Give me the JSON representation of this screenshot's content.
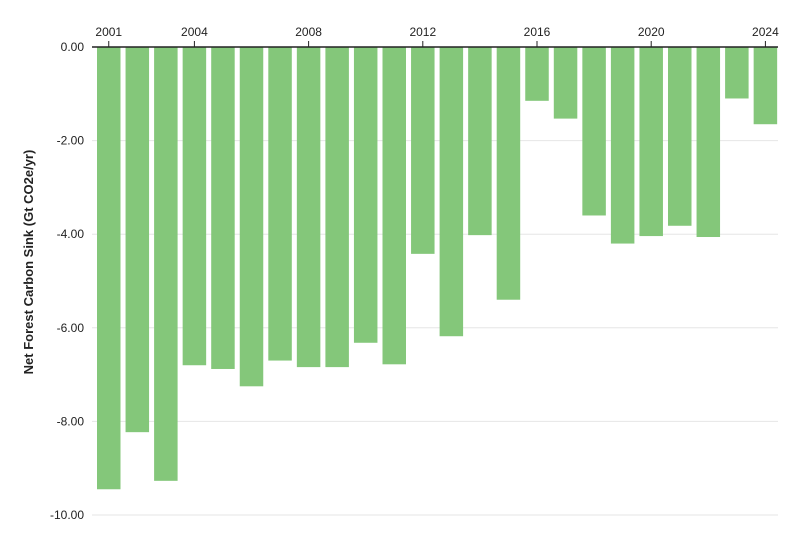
{
  "chart_data": {
    "type": "bar",
    "title": "",
    "xlabel": "",
    "ylabel": "Net Forest Carbon Sink (Gt CO2e/yr)",
    "categories": [
      "2001",
      "2002",
      "2003",
      "2004",
      "2005",
      "2006",
      "2007",
      "2008",
      "2009",
      "2010",
      "2011",
      "2012",
      "2013",
      "2014",
      "2015",
      "2016",
      "2017",
      "2018",
      "2019",
      "2020",
      "2021",
      "2022",
      "2023",
      "2024"
    ],
    "values": [
      -9.45,
      -8.23,
      -9.27,
      -6.8,
      -6.88,
      -7.25,
      -6.7,
      -6.84,
      -6.84,
      -6.32,
      -6.78,
      -4.42,
      -6.18,
      -4.02,
      -5.4,
      -1.15,
      -1.53,
      -3.6,
      -4.2,
      -4.04,
      -3.82,
      -4.06,
      -1.1,
      -1.65
    ],
    "ylim": [
      -10,
      0
    ],
    "y_ticks": [
      0,
      -2,
      -4,
      -6,
      -8,
      -10
    ],
    "y_tick_labels": [
      "0.00",
      "-2.00",
      "-4.00",
      "-6.00",
      "-8.00",
      "-10.00"
    ],
    "x_tick_labels": [
      "2001",
      "2004",
      "2008",
      "2012",
      "2016",
      "2020",
      "2024"
    ],
    "x_axis_position": "top",
    "grid": true,
    "colors": {
      "bar": "#84c77a",
      "grid": "#e6e6e6",
      "axis": "#222222",
      "text": "#222222"
    }
  }
}
